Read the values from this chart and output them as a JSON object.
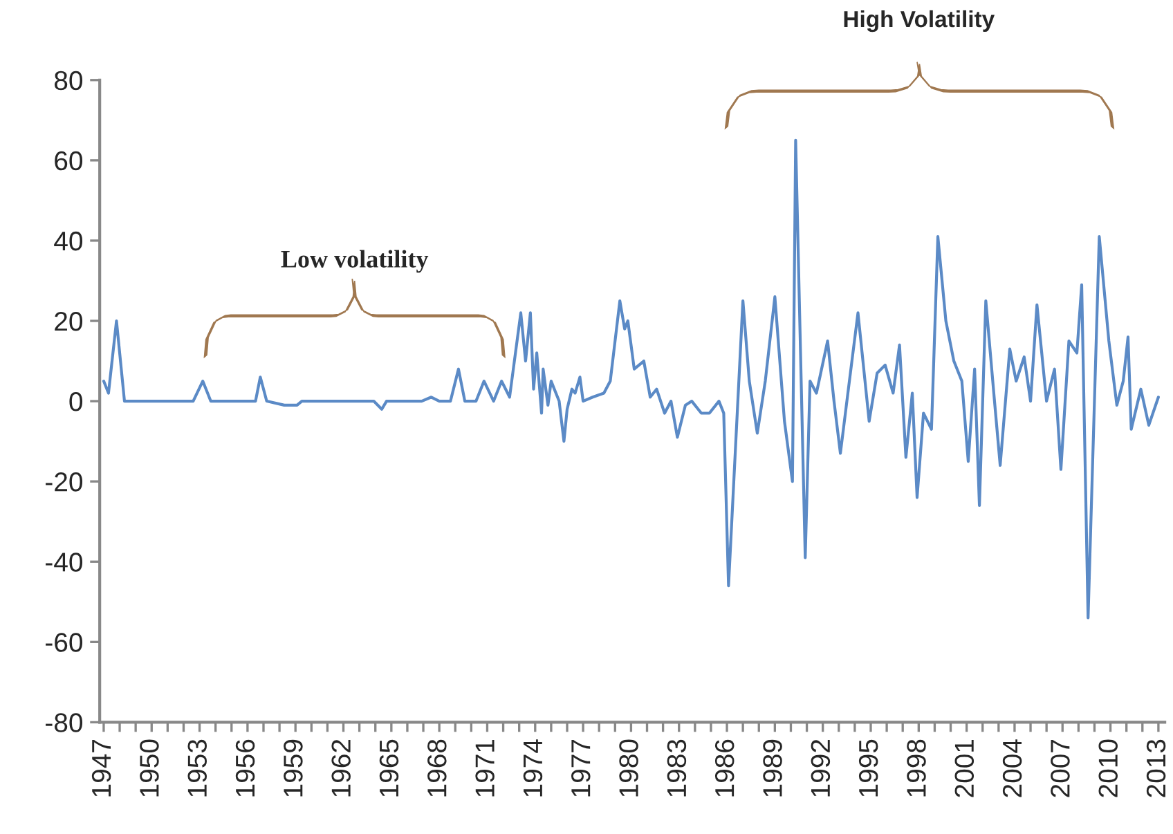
{
  "chart_data": {
    "type": "line",
    "annotations": [
      "Low volatility",
      "High Volatility"
    ],
    "series": [
      {
        "color": "#5b8ac6",
        "x": [
          1947.0,
          1947.3,
          1947.8,
          1948.3,
          1952.6,
          1953.2,
          1953.7,
          1956.5,
          1956.8,
          1957.2,
          1958.3,
          1959.1,
          1959.4,
          1963.9,
          1964.4,
          1964.7,
          1966.9,
          1967.5,
          1968.0,
          1968.7,
          1969.2,
          1969.6,
          1970.3,
          1970.8,
          1971.4,
          1971.9,
          1972.4,
          1972.7,
          1973.1,
          1973.4,
          1973.7,
          1973.9,
          1974.1,
          1974.4,
          1974.5,
          1974.8,
          1975.0,
          1975.2,
          1975.5,
          1975.8,
          1976.0,
          1976.3,
          1976.5,
          1976.8,
          1977.0,
          1977.6,
          1978.3,
          1978.7,
          1979.0,
          1979.3,
          1979.6,
          1979.8,
          1980.2,
          1980.8,
          1981.2,
          1981.6,
          1982.1,
          1982.5,
          1982.9,
          1983.4,
          1983.8,
          1984.4,
          1984.9,
          1985.5,
          1985.8,
          1986.1,
          1987.0,
          1987.4,
          1987.9,
          1988.4,
          1989.0,
          1989.6,
          1990.1,
          1990.3,
          1990.9,
          1991.2,
          1991.6,
          1992.3,
          1992.7,
          1993.1,
          1993.6,
          1994.2,
          1994.9,
          1995.4,
          1995.9,
          1996.4,
          1996.8,
          1997.2,
          1997.6,
          1997.9,
          1998.3,
          1998.8,
          1999.2,
          1999.7,
          2000.2,
          2000.7,
          2001.1,
          2001.5,
          2001.8,
          2002.2,
          2002.7,
          2003.1,
          2003.7,
          2004.1,
          2004.6,
          2005.0,
          2005.4,
          2006.0,
          2006.5,
          2006.9,
          2007.4,
          2007.9,
          2008.2,
          2008.6,
          2009.3,
          2009.9,
          2010.4,
          2010.8,
          2011.1,
          2011.3,
          2011.9,
          2012.4,
          2013.0
        ],
        "values": [
          5,
          2,
          20,
          0,
          0,
          5,
          0,
          0,
          6,
          0,
          -1,
          -1,
          0,
          0,
          -2,
          0,
          0,
          1,
          0,
          0,
          8,
          0,
          0,
          5,
          0,
          5,
          1,
          10,
          22,
          10,
          22,
          3,
          12,
          -3,
          8,
          -1,
          5,
          3,
          0,
          -10,
          -2,
          3,
          2,
          6,
          0,
          1,
          2,
          5,
          15,
          25,
          18,
          20,
          8,
          10,
          1,
          3,
          -3,
          0,
          -9,
          -1,
          0,
          -3,
          -3,
          0,
          -3,
          -46,
          25,
          5,
          -8,
          5,
          26,
          -5,
          -20,
          65,
          -39,
          5,
          2,
          15,
          0,
          -13,
          3,
          22,
          -5,
          7,
          9,
          2,
          14,
          -14,
          2,
          -24,
          -3,
          -7,
          41,
          20,
          10,
          5,
          -15,
          8,
          -26,
          25,
          2,
          -16,
          13,
          5,
          11,
          0,
          24,
          0,
          8,
          -17,
          15,
          12,
          29,
          -54,
          41,
          15,
          -1,
          5,
          16,
          -7,
          3,
          -6,
          1
        ]
      }
    ],
    "xlim": [
      1946.75,
      2013.4
    ],
    "xticks": [
      {
        "value": 1947,
        "label": "1947"
      },
      {
        "value": 1948,
        "label": null
      },
      {
        "value": 1949,
        "label": null
      },
      {
        "value": 1950,
        "label": "1950"
      },
      {
        "value": 1951,
        "label": null
      },
      {
        "value": 1952,
        "label": null
      },
      {
        "value": 1953,
        "label": "1953"
      },
      {
        "value": 1954,
        "label": null
      },
      {
        "value": 1955,
        "label": null
      },
      {
        "value": 1956,
        "label": "1956"
      },
      {
        "value": 1957,
        "label": null
      },
      {
        "value": 1958,
        "label": null
      },
      {
        "value": 1959,
        "label": "1959"
      },
      {
        "value": 1960,
        "label": null
      },
      {
        "value": 1961,
        "label": null
      },
      {
        "value": 1962,
        "label": "1962"
      },
      {
        "value": 1963,
        "label": null
      },
      {
        "value": 1964,
        "label": null
      },
      {
        "value": 1965,
        "label": "1965"
      },
      {
        "value": 1966,
        "label": null
      },
      {
        "value": 1967,
        "label": null
      },
      {
        "value": 1968,
        "label": "1968"
      },
      {
        "value": 1969,
        "label": null
      },
      {
        "value": 1970,
        "label": null
      },
      {
        "value": 1971,
        "label": "1971"
      },
      {
        "value": 1972,
        "label": null
      },
      {
        "value": 1973,
        "label": null
      },
      {
        "value": 1974,
        "label": "1974"
      },
      {
        "value": 1975,
        "label": null
      },
      {
        "value": 1976,
        "label": null
      },
      {
        "value": 1977,
        "label": "1977"
      },
      {
        "value": 1978,
        "label": null
      },
      {
        "value": 1979,
        "label": null
      },
      {
        "value": 1980,
        "label": "1980"
      },
      {
        "value": 1981,
        "label": null
      },
      {
        "value": 1982,
        "label": null
      },
      {
        "value": 1983,
        "label": "1983"
      },
      {
        "value": 1984,
        "label": null
      },
      {
        "value": 1985,
        "label": null
      },
      {
        "value": 1986,
        "label": "1986"
      },
      {
        "value": 1987,
        "label": null
      },
      {
        "value": 1988,
        "label": null
      },
      {
        "value": 1989,
        "label": "1989"
      },
      {
        "value": 1990,
        "label": null
      },
      {
        "value": 1991,
        "label": null
      },
      {
        "value": 1992,
        "label": "1992"
      },
      {
        "value": 1993,
        "label": null
      },
      {
        "value": 1994,
        "label": null
      },
      {
        "value": 1995,
        "label": "1995"
      },
      {
        "value": 1996,
        "label": null
      },
      {
        "value": 1997,
        "label": null
      },
      {
        "value": 1998,
        "label": "1998"
      },
      {
        "value": 1999,
        "label": null
      },
      {
        "value": 2000,
        "label": null
      },
      {
        "value": 2001,
        "label": "2001"
      },
      {
        "value": 2002,
        "label": null
      },
      {
        "value": 2003,
        "label": null
      },
      {
        "value": 2004,
        "label": "2004"
      },
      {
        "value": 2005,
        "label": null
      },
      {
        "value": 2006,
        "label": null
      },
      {
        "value": 2007,
        "label": "2007"
      },
      {
        "value": 2008,
        "label": null
      },
      {
        "value": 2009,
        "label": null
      },
      {
        "value": 2010,
        "label": "2010"
      },
      {
        "value": 2011,
        "label": null
      },
      {
        "value": 2012,
        "label": null
      },
      {
        "value": 2013,
        "label": "2013"
      }
    ],
    "ylim": [
      -80,
      80
    ],
    "yticks": [
      -80,
      -60,
      -40,
      -20,
      0,
      20,
      40,
      60,
      80
    ],
    "grid": false,
    "marker": "none",
    "line_style": "solid"
  }
}
